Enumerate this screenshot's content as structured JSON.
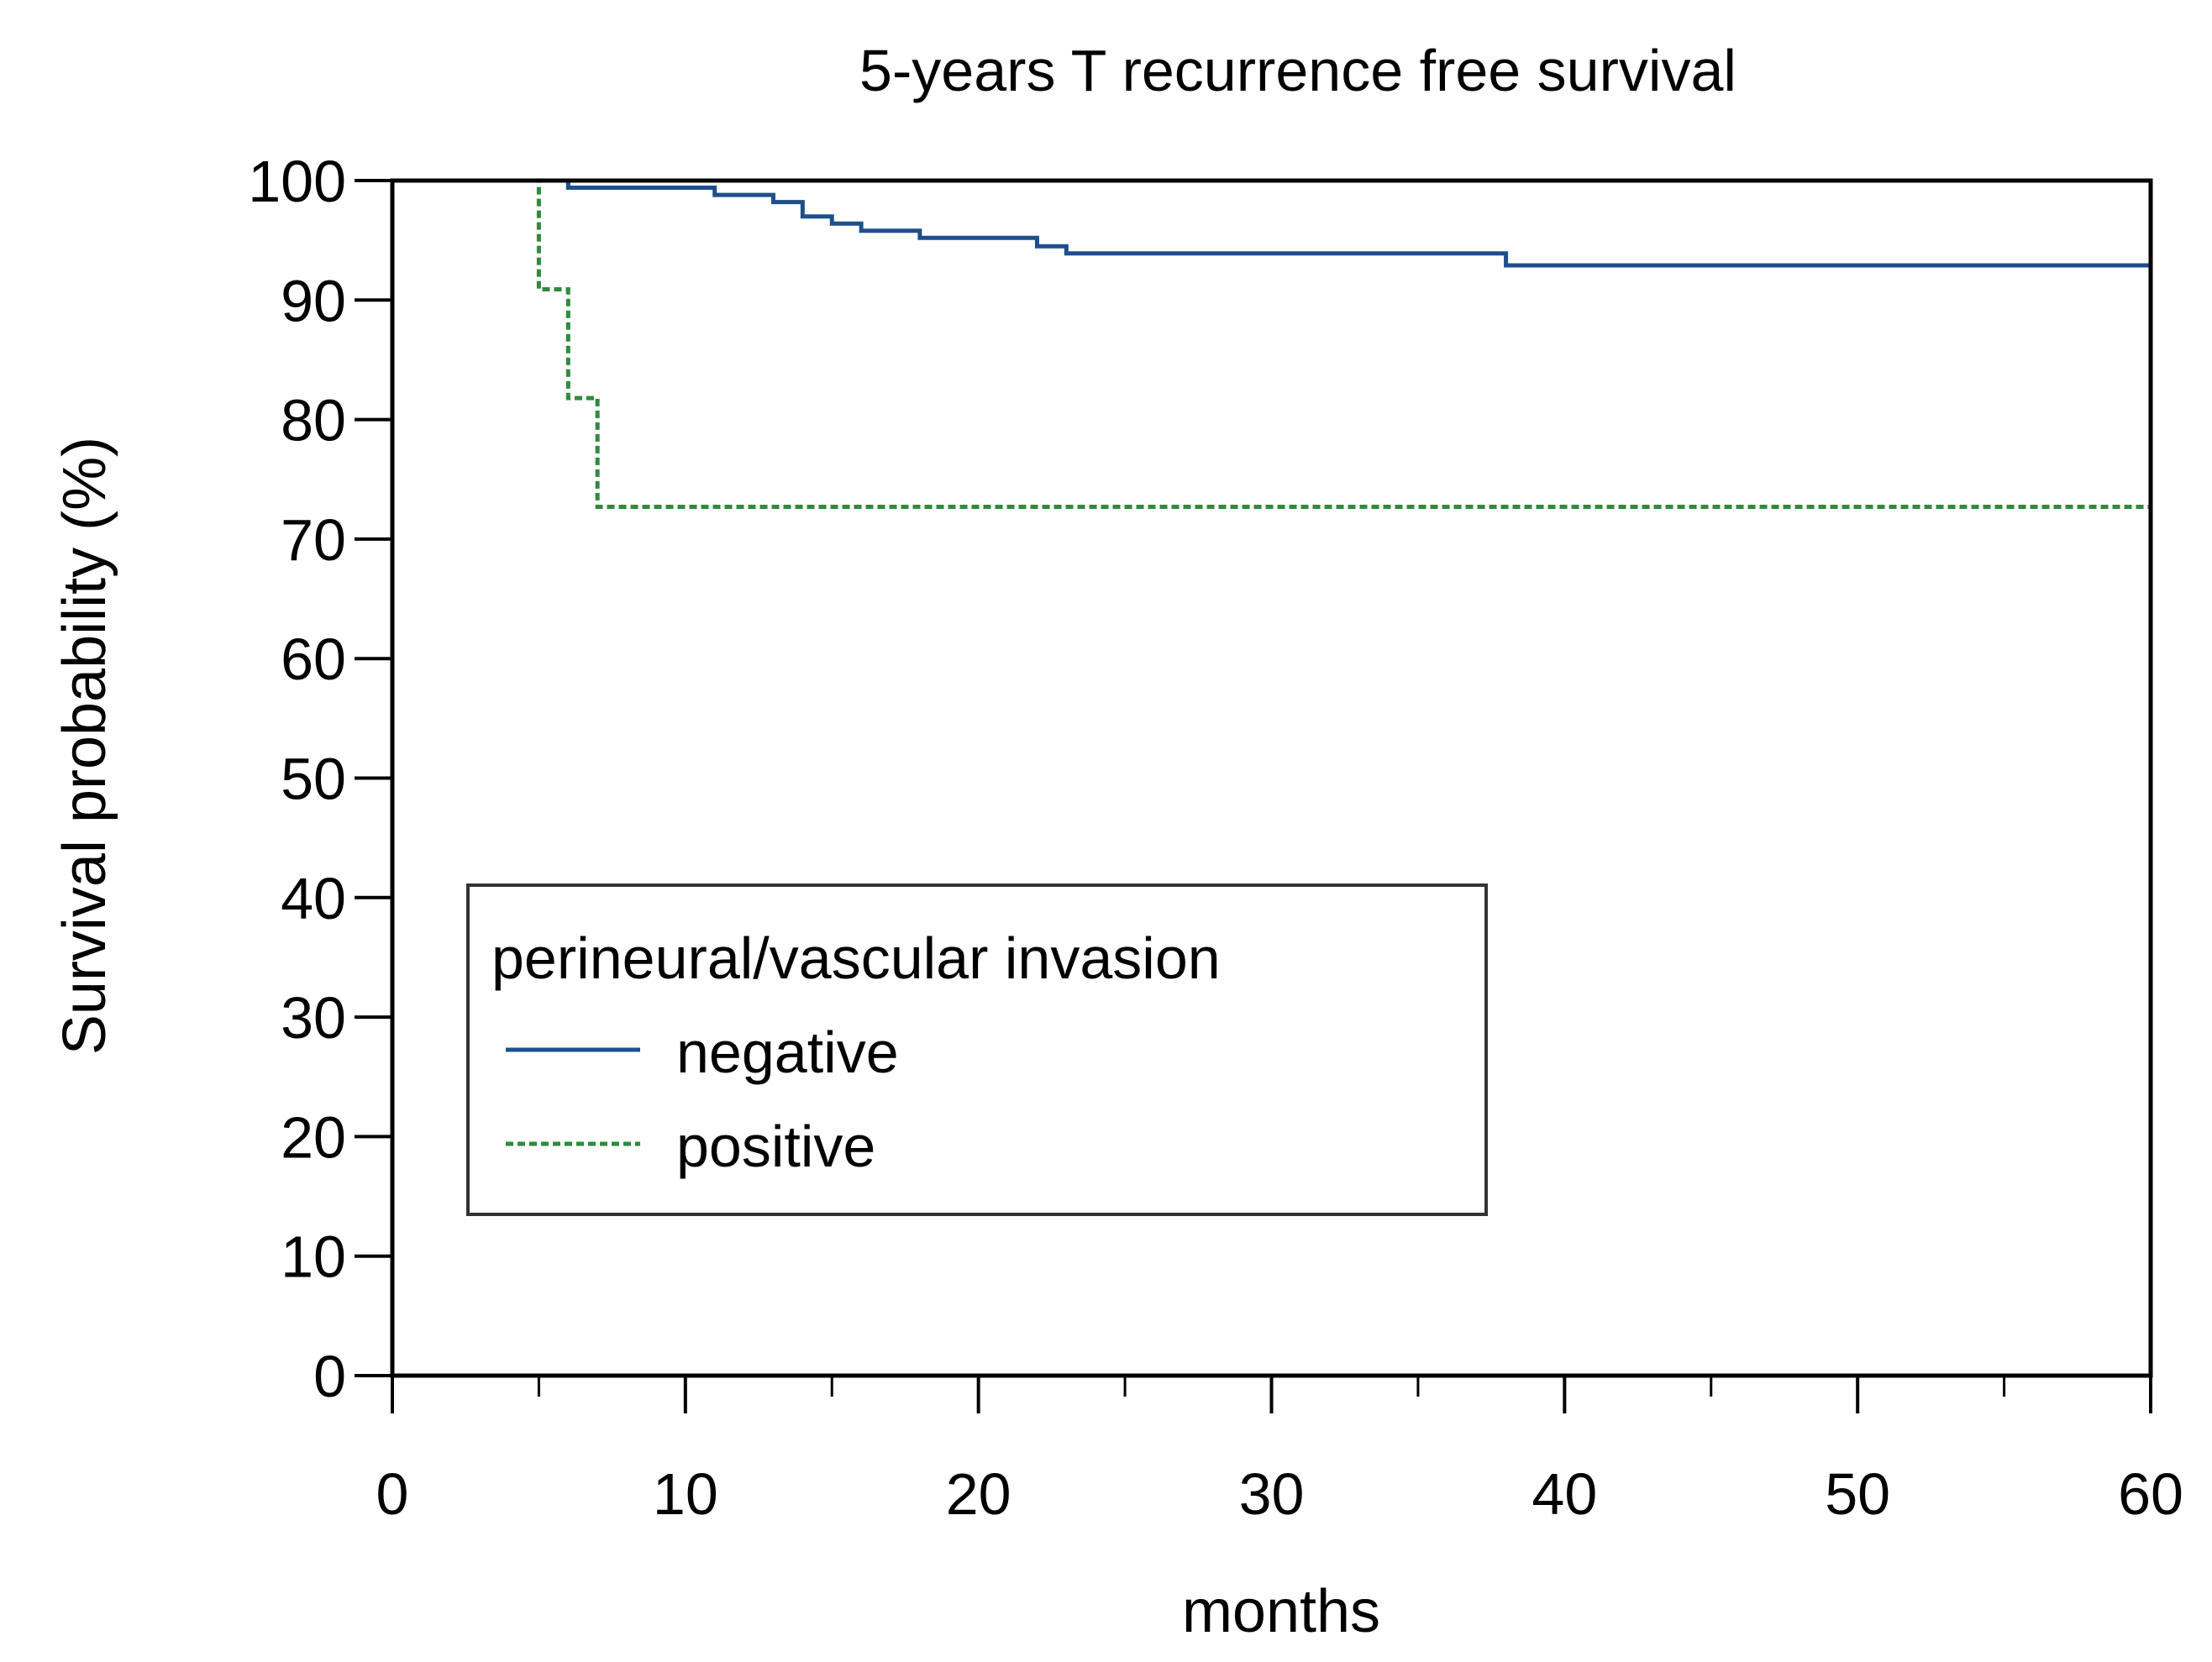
{
  "chart_data": {
    "type": "line",
    "title": "5-years T recurrence free survival",
    "xlabel": "months",
    "ylabel": "Survival probability (%)",
    "xlim": [
      0,
      60
    ],
    "ylim": [
      0,
      100
    ],
    "xticks": [
      0,
      10,
      20,
      30,
      40,
      50,
      60
    ],
    "yticks": [
      0,
      10,
      20,
      30,
      40,
      50,
      60,
      70,
      80,
      90,
      100
    ],
    "grid": false,
    "legend": {
      "title": "perineural/vascular invasion",
      "position": "lower-left"
    },
    "series": [
      {
        "name": "negative",
        "color": "#1f4e8c",
        "style": "solid",
        "steps": [
          [
            0,
            100
          ],
          [
            6,
            99.4
          ],
          [
            11,
            98.8
          ],
          [
            13,
            98.2
          ],
          [
            14,
            97.0
          ],
          [
            15,
            96.4
          ],
          [
            16,
            95.8
          ],
          [
            18,
            95.2
          ],
          [
            22,
            94.5
          ],
          [
            23,
            93.9
          ],
          [
            38,
            92.9
          ],
          [
            60,
            92.0
          ]
        ]
      },
      {
        "name": "positive",
        "color": "#2e8b3e",
        "style": "dashed",
        "steps": [
          [
            0,
            100
          ],
          [
            5,
            90.9
          ],
          [
            6,
            81.8
          ],
          [
            7,
            72.7
          ],
          [
            60,
            72.7
          ]
        ]
      }
    ]
  }
}
